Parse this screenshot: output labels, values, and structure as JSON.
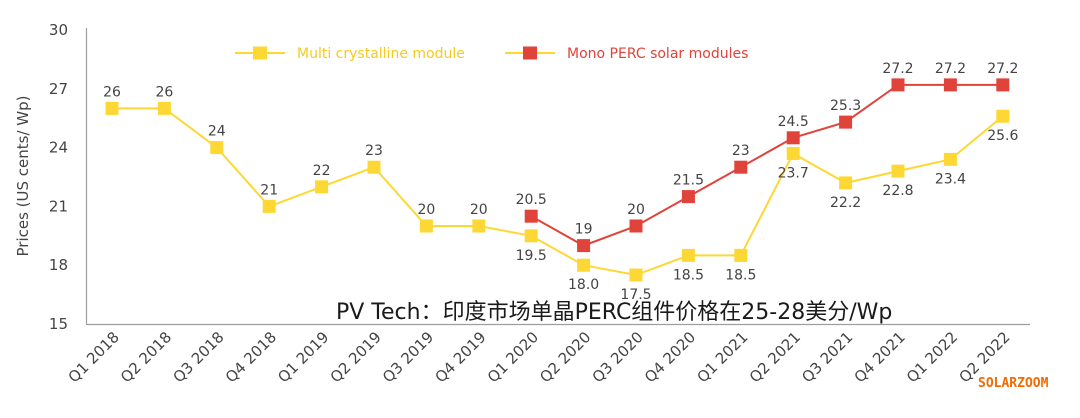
{
  "chart_data": {
    "type": "line",
    "title": "",
    "xlabel": "",
    "ylabel": "Prices (US cents/ Wp)",
    "ylim": [
      15,
      30
    ],
    "yticks": [
      15,
      18,
      21,
      24,
      27,
      30
    ],
    "grid": false,
    "legend_position": "top-center",
    "categories": [
      "Q1 2018",
      "Q2 2018",
      "Q3 2018",
      "Q4 2018",
      "Q1 2019",
      "Q2 2019",
      "Q3 2019",
      "Q4 2019",
      "Q1 2020",
      "Q2 2020",
      "Q3 2020",
      "Q4 2020",
      "Q1 2021",
      "Q2 2021",
      "Q3 2021",
      "Q4 2021",
      "Q1 2022",
      "Q2 2022"
    ],
    "series": [
      {
        "name": "Multi crystalline module",
        "color": "#FDD835",
        "values": [
          26,
          26,
          24,
          21,
          22,
          23,
          20,
          20,
          19.5,
          18.0,
          17.5,
          18.5,
          18.5,
          23.7,
          22.2,
          22.8,
          23.4,
          25.6
        ],
        "labels": [
          "26",
          "26",
          "24",
          "21",
          "22",
          "23",
          "20",
          "20",
          "19.5",
          "18.0",
          "17.5",
          "18.5",
          "18.5",
          "23.7",
          "22.2",
          "22.8",
          "23.4",
          "25.6"
        ],
        "label_position": [
          "above",
          "above",
          "above",
          "above",
          "above",
          "above",
          "above",
          "above",
          "below",
          "below",
          "below",
          "below",
          "below",
          "below",
          "below",
          "below",
          "below",
          "below"
        ]
      },
      {
        "name": "Mono PERC solar modules",
        "color": "#E0433A",
        "values": [
          null,
          null,
          null,
          null,
          null,
          null,
          null,
          null,
          20.5,
          19,
          20,
          21.5,
          23,
          24.5,
          25.3,
          27.2,
          27.2,
          27.2
        ],
        "labels": [
          "",
          "",
          "",
          "",
          "",
          "",
          "",
          "",
          "20.5",
          "19",
          "20",
          "21.5",
          "23",
          "24.5",
          "25.3",
          "27.2",
          "27.2",
          "27.2"
        ],
        "label_position": [
          "above",
          "above",
          "above",
          "above",
          "above",
          "above",
          "above",
          "above",
          "above",
          "above",
          "above",
          "above",
          "above",
          "above",
          "above",
          "above",
          "above",
          "above"
        ]
      }
    ],
    "annotations": {
      "caption": "PV Tech：印度市场单晶PERC组件价格在25-28美分/Wp",
      "watermark": "SOLARZOOM",
      "watermark_color": "#F26A00"
    }
  }
}
